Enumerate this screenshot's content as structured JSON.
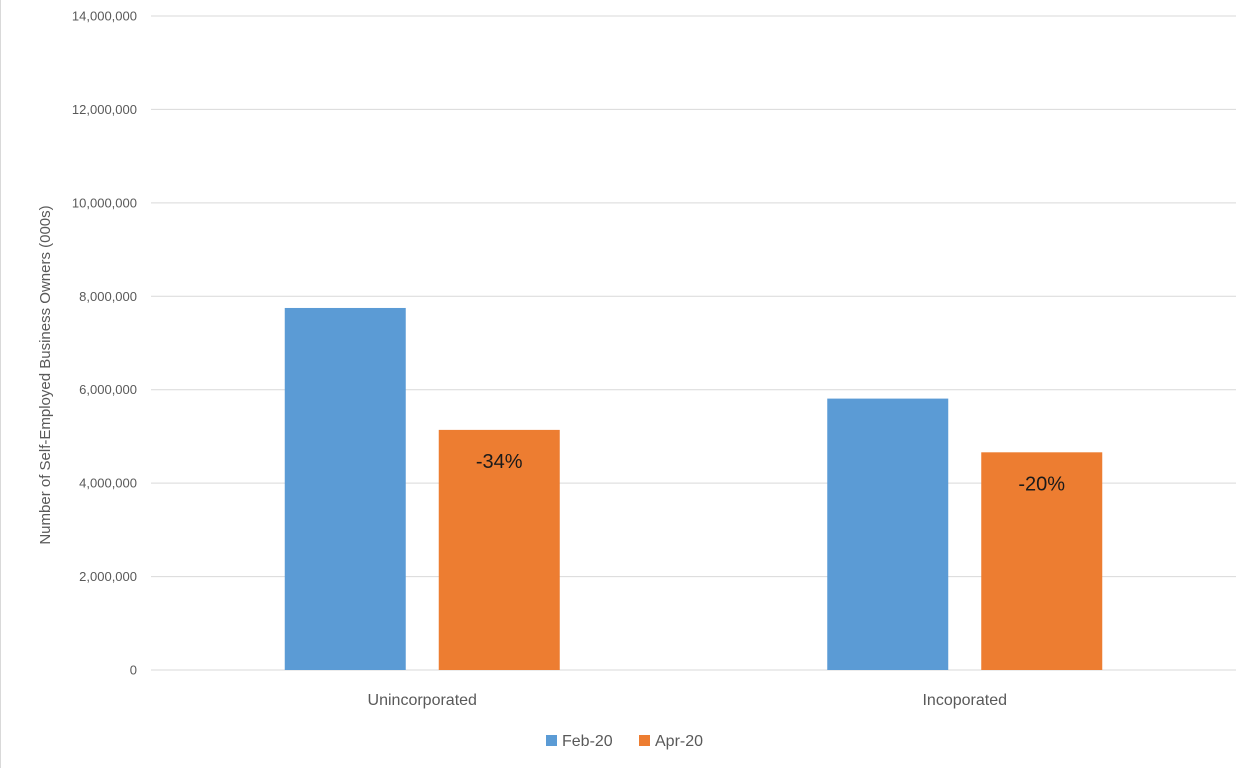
{
  "chart_data": {
    "type": "bar",
    "categories": [
      "Unincorporated",
      "Incoporated"
    ],
    "series": [
      {
        "name": "Feb-20",
        "values": [
          7750000,
          5810000
        ],
        "color": "#5b9bd5"
      },
      {
        "name": "Apr-20",
        "values": [
          5140000,
          4660000
        ],
        "color": "#ed7d31"
      }
    ],
    "data_labels": [
      {
        "series": 1,
        "category": 0,
        "text": "-34%"
      },
      {
        "series": 1,
        "category": 1,
        "text": "-20%"
      }
    ],
    "ylabel": "Number of Self-Employed Business Owners (000s)",
    "xlabel": "",
    "ylim": [
      0,
      14000000
    ],
    "yticks": [
      0,
      2000000,
      4000000,
      6000000,
      8000000,
      10000000,
      12000000,
      14000000
    ],
    "ytick_labels": [
      "0",
      "2,000,000",
      "4,000,000",
      "6,000,000",
      "8,000,000",
      "10,000,000",
      "12,000,000",
      "14,000,000"
    ],
    "grid": true,
    "legend_position": "bottom",
    "colors": {
      "gridline": "#d9d9d9",
      "axis_text": "#595959"
    }
  }
}
